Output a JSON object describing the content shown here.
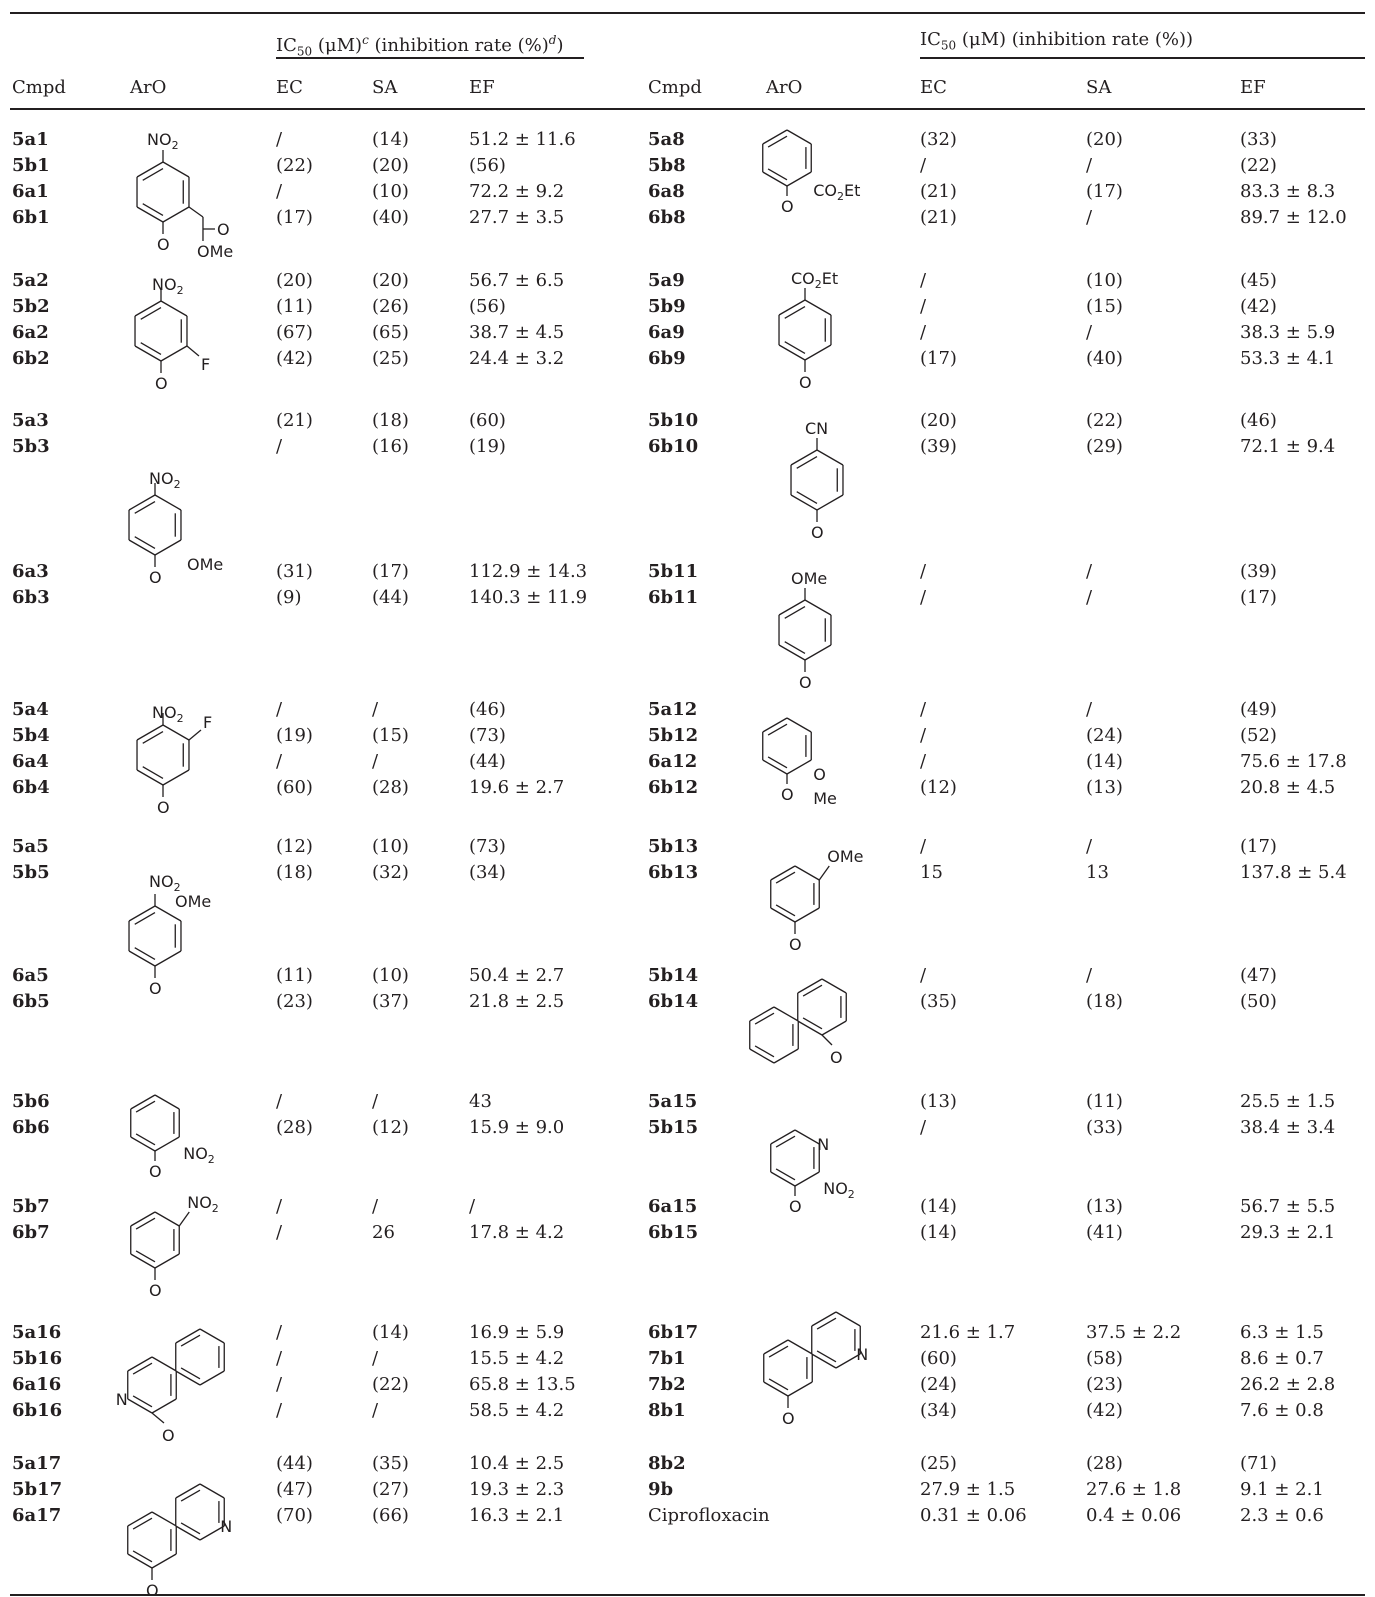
{
  "group_left": {
    "ic50": "IC",
    "sub": "50",
    "unit": " (μM)",
    "c": "c",
    "inh": " (inhibition rate (%)",
    "d": "d",
    "close": ")"
  },
  "group_right": {
    "ic50": "IC",
    "sub": "50",
    "unit": " (μM) (inhibition rate (%))"
  },
  "headers": {
    "cmpd": "Cmpd",
    "aro": "ArO",
    "ec": "EC",
    "sa": "SA",
    "ef": "EF"
  },
  "left_rows": [
    [
      "5a1",
      "/",
      "(14)",
      "51.2 ± 11.6"
    ],
    [
      "5b1",
      "(22)",
      "(20)",
      "(56)"
    ],
    [
      "6a1",
      "/",
      "(10)",
      "72.2 ± 9.2"
    ],
    [
      "6b1",
      "(17)",
      "(40)",
      "27.7 ± 3.5"
    ],
    [
      "5a2",
      "(20)",
      "(20)",
      "56.7 ± 6.5"
    ],
    [
      "5b2",
      "(11)",
      "(26)",
      "(56)"
    ],
    [
      "6a2",
      "(67)",
      "(65)",
      "38.7 ± 4.5"
    ],
    [
      "6b2",
      "(42)",
      "(25)",
      "24.4 ± 3.2"
    ],
    [
      "5a3",
      "(21)",
      "(18)",
      "(60)"
    ],
    [
      "5b3",
      "/",
      "(16)",
      "(19)"
    ],
    [
      "6a3",
      "(31)",
      "(17)",
      "112.9 ± 14.3"
    ],
    [
      "6b3",
      "(9)",
      "(44)",
      "140.3 ± 11.9"
    ],
    [
      "5a4",
      "/",
      "/",
      "(46)"
    ],
    [
      "5b4",
      "(19)",
      "(15)",
      "(73)"
    ],
    [
      "6a4",
      "/",
      "/",
      "(44)"
    ],
    [
      "6b4",
      "(60)",
      "(28)",
      "19.6 ± 2.7"
    ],
    [
      "5a5",
      "(12)",
      "(10)",
      "(73)"
    ],
    [
      "5b5",
      "(18)",
      "(32)",
      "(34)"
    ],
    [
      "6a5",
      "(11)",
      "(10)",
      "50.4 ± 2.7"
    ],
    [
      "6b5",
      "(23)",
      "(37)",
      "21.8 ± 2.5"
    ],
    [
      "5b6",
      "/",
      "/",
      "43"
    ],
    [
      "6b6",
      "(28)",
      "(12)",
      "15.9 ± 9.0"
    ],
    [
      "5b7",
      "/",
      "/",
      "/"
    ],
    [
      "6b7",
      "/",
      "26",
      "17.8 ± 4.2"
    ],
    [
      "5a16",
      "/",
      "(14)",
      "16.9 ± 5.9"
    ],
    [
      "5b16",
      "/",
      "/",
      "15.5 ± 4.2"
    ],
    [
      "6a16",
      "/",
      "(22)",
      "65.8 ± 13.5"
    ],
    [
      "6b16",
      "/",
      "/",
      "58.5 ± 4.2"
    ],
    [
      "5a17",
      "(44)",
      "(35)",
      "10.4 ± 2.5"
    ],
    [
      "5b17",
      "(47)",
      "(27)",
      "19.3 ± 2.3"
    ],
    [
      "6a17",
      "(70)",
      "(66)",
      "16.3 ± 2.1"
    ]
  ],
  "right_rows": [
    [
      "5a8",
      "(32)",
      "(20)",
      "(33)"
    ],
    [
      "5b8",
      "/",
      "/",
      "(22)"
    ],
    [
      "6a8",
      "(21)",
      "(17)",
      "83.3 ± 8.3"
    ],
    [
      "6b8",
      "(21)",
      "/",
      "89.7 ± 12.0"
    ],
    [
      "5a9",
      "/",
      "(10)",
      "(45)"
    ],
    [
      "5b9",
      "/",
      "(15)",
      "(42)"
    ],
    [
      "6a9",
      "/",
      "/",
      "38.3 ± 5.9"
    ],
    [
      "6b9",
      "(17)",
      "(40)",
      "53.3 ± 4.1"
    ],
    [
      "5b10",
      "(20)",
      "(22)",
      "(46)"
    ],
    [
      "6b10",
      "(39)",
      "(29)",
      "72.1 ± 9.4"
    ],
    [
      "5b11",
      "/",
      "/",
      "(39)"
    ],
    [
      "6b11",
      "/",
      "/",
      "(17)"
    ],
    [
      "5a12",
      "/",
      "/",
      "(49)"
    ],
    [
      "5b12",
      "/",
      "(24)",
      "(52)"
    ],
    [
      "6a12",
      "/",
      "(14)",
      "75.6 ± 17.8"
    ],
    [
      "6b12",
      "(12)",
      "(13)",
      "20.8 ± 4.5"
    ],
    [
      "5b13",
      "/",
      "/",
      "(17)"
    ],
    [
      "6b13",
      "15",
      "13",
      "137.8 ± 5.4"
    ],
    [
      "5b14",
      "/",
      "/",
      "(47)"
    ],
    [
      "6b14",
      "(35)",
      "(18)",
      "(50)"
    ],
    [
      "5a15",
      "(13)",
      "(11)",
      "25.5 ± 1.5"
    ],
    [
      "5b15",
      "/",
      "(33)",
      "38.4 ± 3.4"
    ],
    [
      "6a15",
      "(14)",
      "(13)",
      "56.7 ± 5.5"
    ],
    [
      "6b15",
      "(14)",
      "(41)",
      "29.3 ± 2.1"
    ],
    [
      "6b17",
      "21.6 ± 1.7",
      "37.5 ± 2.2",
      "6.3 ± 1.5"
    ],
    [
      "7b1",
      "(60)",
      "(58)",
      "8.6 ± 0.7"
    ],
    [
      "7b2",
      "(24)",
      "(23)",
      "26.2 ± 2.8"
    ],
    [
      "8b1",
      "(34)",
      "(42)",
      "7.6 ± 0.8"
    ],
    [
      "8b2",
      "(25)",
      "(28)",
      "(71)"
    ],
    [
      "9b",
      "27.9 ± 1.5",
      "27.6 ± 1.8",
      "9.1 ± 2.1"
    ],
    [
      "Ciprofloxacin",
      "0.31 ± 0.06",
      "0.4 ± 0.06",
      "2.3 ± 0.6"
    ]
  ],
  "struct_labels": {
    "no2_n": "NO",
    "no2_s": "2",
    "o": "O",
    "ome": "OMe",
    "f": "F",
    "n": "N",
    "me": "Me",
    "co2et_a": "CO",
    "co2et_s": "2",
    "co2et_b": "Et",
    "cn": "CN",
    "carbonyl_o": "O"
  }
}
